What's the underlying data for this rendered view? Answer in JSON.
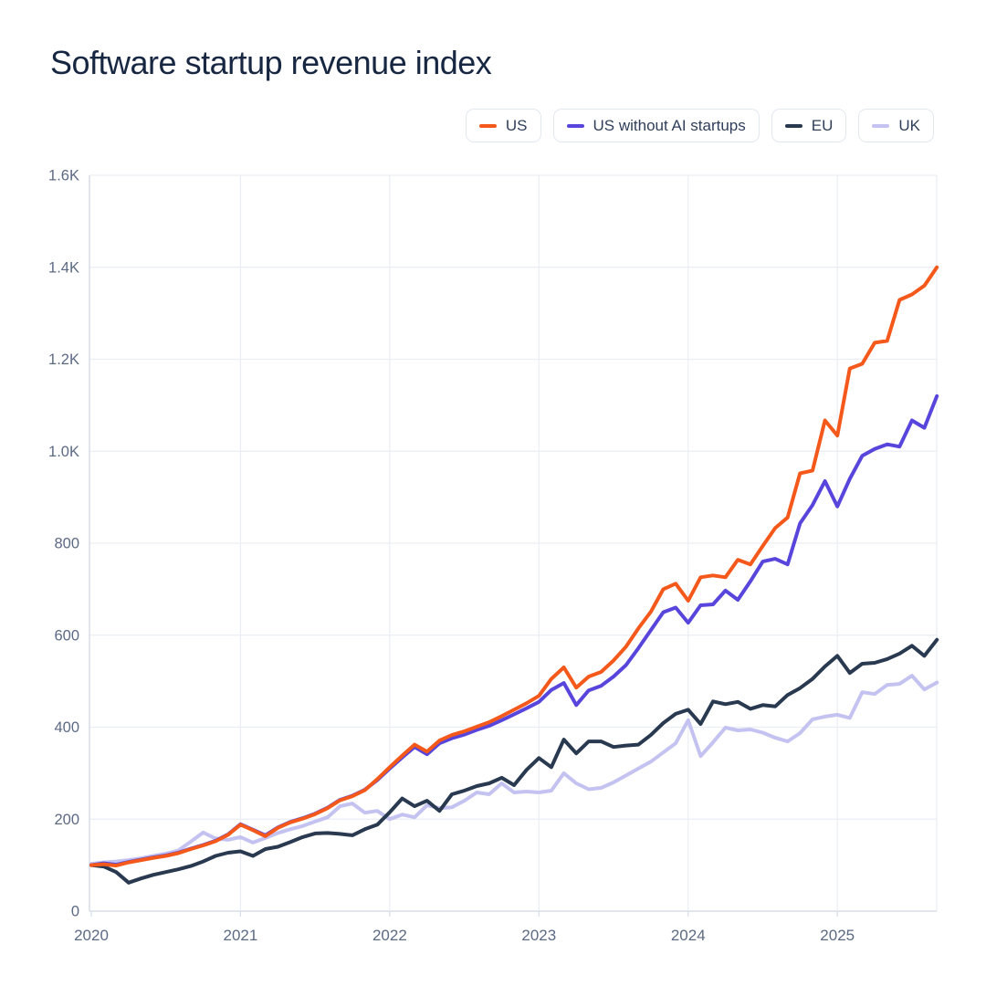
{
  "title": "Software startup revenue index",
  "chart_data": {
    "type": "line",
    "title": "Software startup revenue index",
    "x_interval": "monthly",
    "x_start": "2020-01",
    "x_end": "2025-09",
    "xlabel": "",
    "ylabel": "",
    "ylim": [
      0,
      1600
    ],
    "grid": true,
    "legend_position": "top-right",
    "x_tick_labels": [
      "2020",
      "2021",
      "2022",
      "2023",
      "2024",
      "2025"
    ],
    "y_tick_values": [
      0,
      200,
      400,
      600,
      800,
      1000,
      1200,
      1400,
      1600
    ],
    "y_tick_labels": [
      "0",
      "200",
      "400",
      "600",
      "800",
      "1.0K",
      "1.2K",
      "1.4K",
      "1.6K"
    ],
    "series": [
      {
        "name": "US",
        "color": "#F4591B",
        "values": [
          100,
          102,
          99,
          106,
          111,
          116,
          120,
          126,
          135,
          143,
          152,
          166,
          188,
          176,
          163,
          181,
          193,
          201,
          211,
          224,
          241,
          250,
          263,
          287,
          313,
          338,
          362,
          347,
          371,
          383,
          391,
          401,
          411,
          424,
          438,
          452,
          468,
          505,
          530,
          486,
          510,
          520,
          545,
          575,
          615,
          651,
          700,
          712,
          675,
          726,
          730,
          726,
          764,
          754,
          794,
          833,
          856,
          952,
          958,
          1067,
          1034,
          1180,
          1190,
          1236,
          1240,
          1329,
          1341,
          1360,
          1400
        ]
      },
      {
        "name": "US without AI startups",
        "color": "#5845DC",
        "values": [
          100,
          104,
          101,
          107,
          112,
          117,
          121,
          127,
          136,
          144,
          153,
          167,
          189,
          177,
          165,
          182,
          194,
          202,
          212,
          225,
          242,
          251,
          264,
          285,
          310,
          334,
          357,
          341,
          365,
          376,
          384,
          394,
          403,
          415,
          428,
          441,
          455,
          481,
          496,
          448,
          480,
          490,
          510,
          535,
          572,
          611,
          650,
          660,
          627,
          665,
          667,
          697,
          677,
          717,
          760,
          766,
          754,
          843,
          883,
          935,
          880,
          940,
          990,
          1005,
          1015,
          1010,
          1067,
          1051,
          1120
        ]
      },
      {
        "name": "EU",
        "color": "#293950",
        "values": [
          100,
          97,
          85,
          62,
          71,
          79,
          85,
          91,
          98,
          108,
          120,
          127,
          130,
          120,
          135,
          140,
          150,
          161,
          169,
          170,
          168,
          165,
          178,
          188,
          215,
          245,
          228,
          240,
          218,
          254,
          262,
          272,
          278,
          290,
          274,
          307,
          333,
          313,
          373,
          343,
          369,
          369,
          357,
          360,
          362,
          383,
          409,
          429,
          438,
          407,
          456,
          450,
          455,
          440,
          448,
          445,
          470,
          485,
          505,
          532,
          555,
          518,
          538,
          540,
          548,
          560,
          577,
          555,
          590
        ]
      },
      {
        "name": "UK",
        "color": "#C4C2F0",
        "values": [
          103,
          106,
          108,
          111,
          115,
          120,
          125,
          132,
          151,
          171,
          158,
          155,
          161,
          149,
          159,
          170,
          178,
          185,
          195,
          204,
          228,
          234,
          214,
          218,
          200,
          210,
          204,
          230,
          224,
          226,
          240,
          258,
          254,
          278,
          258,
          260,
          258,
          262,
          300,
          278,
          265,
          268,
          280,
          295,
          310,
          325,
          345,
          365,
          415,
          337,
          367,
          399,
          393,
          395,
          388,
          377,
          369,
          387,
          417,
          423,
          427,
          420,
          476,
          472,
          492,
          494,
          512,
          482,
          497
        ]
      }
    ],
    "style": {
      "grid_color": "#EAEEF4",
      "axis_color": "#D7DDE8",
      "tick_text_color": "#5C6A84",
      "background": "#FFFFFF",
      "line_width": 4
    }
  }
}
